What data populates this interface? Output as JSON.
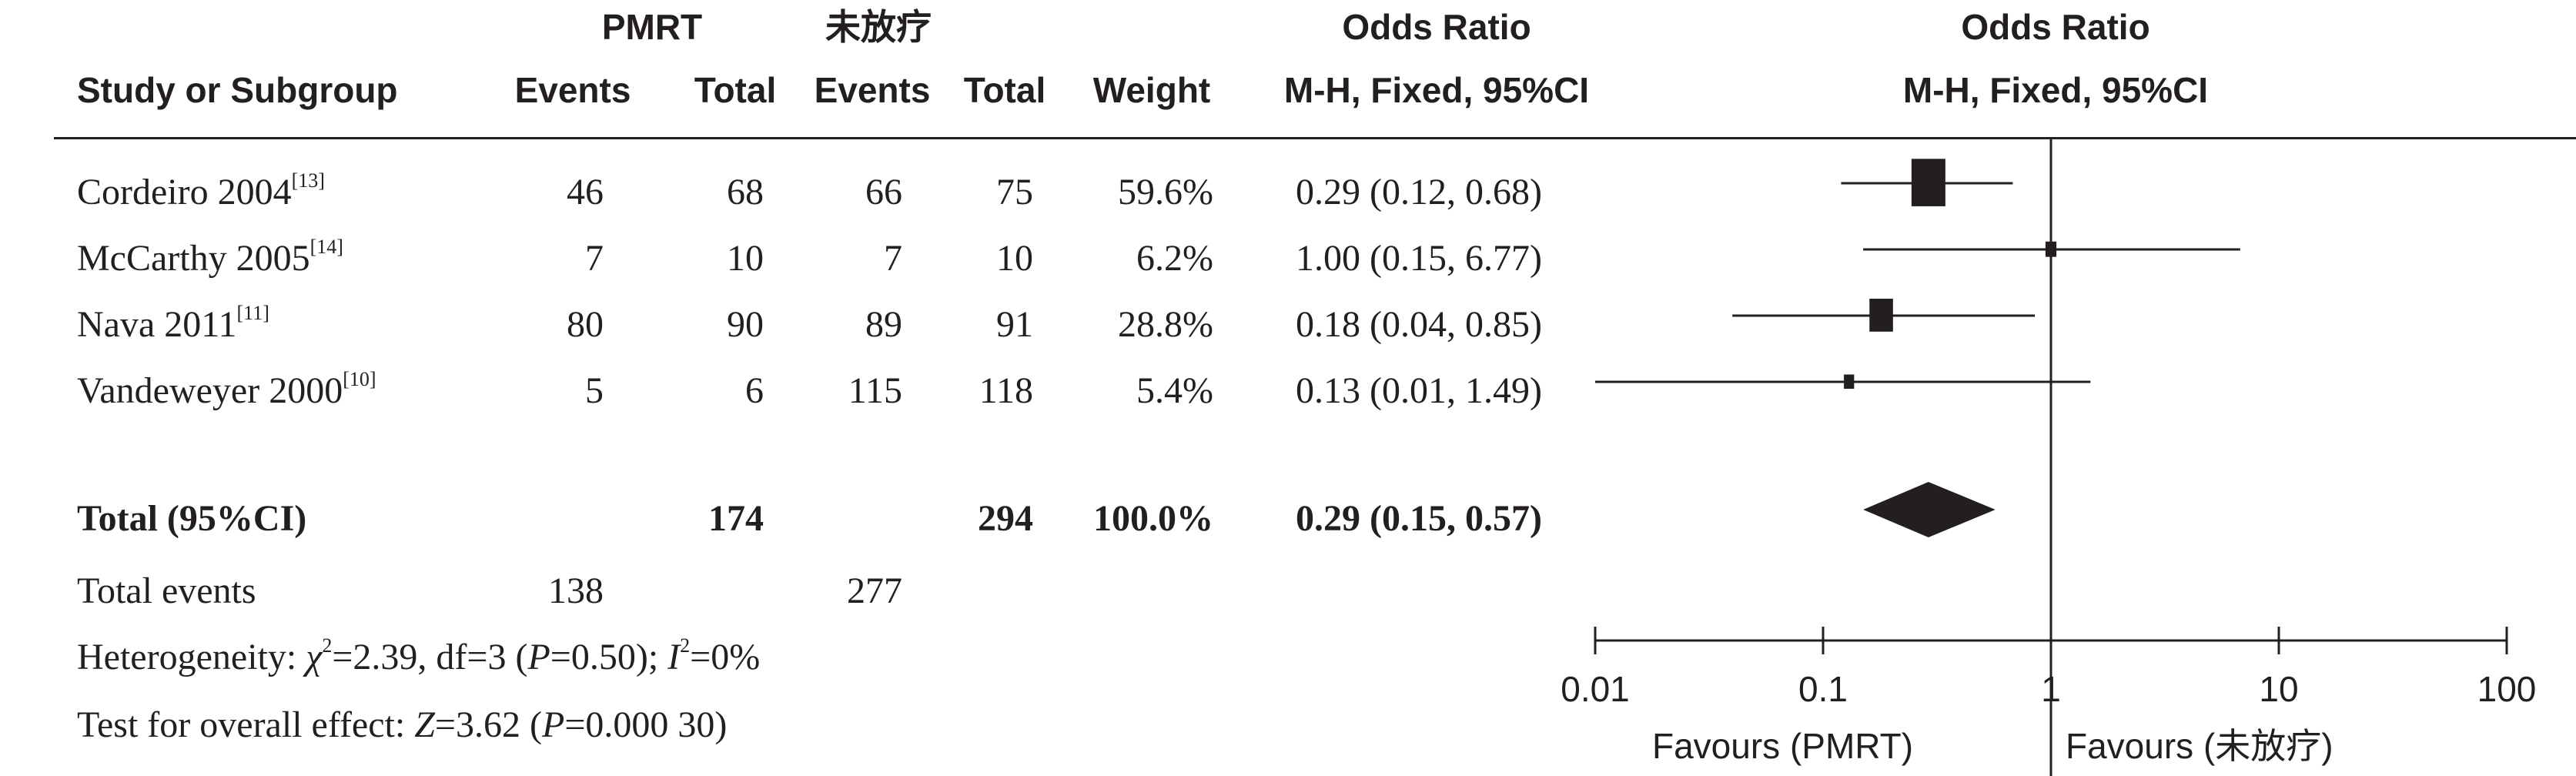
{
  "header": {
    "group1": "PMRT",
    "group2": "未放疗",
    "study_col": "Study or Subgroup",
    "events1": "Events",
    "total1": "Total",
    "events2": "Events",
    "total2": "Total",
    "weight": "Weight",
    "or_title": "Odds Ratio",
    "or_method": "M-H, Fixed, 95%CI",
    "plot_title": "Odds Ratio",
    "plot_method": "M-H, Fixed, 95%CI"
  },
  "summary": {
    "total_label": "Total (95%CI)",
    "total1": "174",
    "total2": "294",
    "weight": "100.0%",
    "or_text": "0.29 (0.15, 0.57)",
    "events_label": "Total events",
    "events1": "138",
    "events2": "277",
    "heterogeneity": {
      "prefix": "Heterogeneity: ",
      "chi": "χ",
      "chi_sup": "2",
      "chi_val": "=2.39, df=3 (",
      "p": "P",
      "p_val": "=0.50); ",
      "i": "I",
      "i_sup": "2",
      "i_val": "=0%"
    },
    "overall_effect": {
      "prefix": "Test for overall effect: ",
      "z": "Z",
      "z_val": "=3.62 (",
      "p": "P",
      "p_val": "=0.000 30)"
    }
  },
  "chart_data": {
    "type": "forest",
    "scale": "log",
    "xlim": [
      0.01,
      100
    ],
    "ticks": [
      0.01,
      0.1,
      1,
      10,
      100
    ],
    "tick_labels": [
      "0.01",
      "0.1",
      "1",
      "10",
      "100"
    ],
    "favours_left": "Favours (PMRT)",
    "favours_right": "Favours (未放疗)",
    "studies": [
      {
        "name": "Cordeiro 2004",
        "ref": "[13]",
        "events1": "46",
        "total1": "68",
        "events2": "66",
        "total2": "75",
        "weight_text": "59.6%",
        "weight": 59.6,
        "or_text": "0.29 (0.12, 0.68)",
        "or": 0.29,
        "lower": 0.12,
        "upper": 0.68
      },
      {
        "name": "McCarthy 2005",
        "ref": "[14]",
        "events1": "7",
        "total1": "10",
        "events2": "7",
        "total2": "10",
        "weight_text": "6.2%",
        "weight": 6.2,
        "or_text": "1.00 (0.15, 6.77)",
        "or": 1.0,
        "lower": 0.15,
        "upper": 6.77
      },
      {
        "name": "Nava 2011",
        "ref": "[11]",
        "events1": "80",
        "total1": "90",
        "events2": "89",
        "total2": "91",
        "weight_text": "28.8%",
        "weight": 28.8,
        "or_text": "0.18 (0.04, 0.85)",
        "or": 0.18,
        "lower": 0.04,
        "upper": 0.85
      },
      {
        "name": "Vandeweyer 2000",
        "ref": "[10]",
        "events1": "5",
        "total1": "6",
        "events2": "115",
        "total2": "118",
        "weight_text": "5.4%",
        "weight": 5.4,
        "or_text": "0.13 (0.01, 1.49)",
        "or": 0.13,
        "lower": 0.01,
        "upper": 1.49
      }
    ],
    "pooled": {
      "or": 0.29,
      "lower": 0.15,
      "upper": 0.57
    }
  },
  "colors": {
    "ink": "#231f20"
  }
}
